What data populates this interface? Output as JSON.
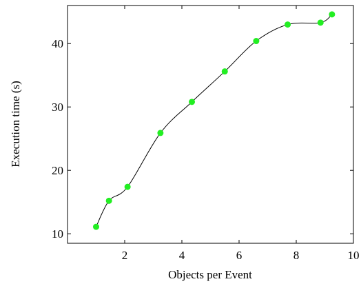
{
  "chart_data": {
    "type": "line",
    "title": "",
    "xlabel": "Objects per Event",
    "ylabel": "Execution time (s)",
    "xlim": [
      0.0,
      10.0
    ],
    "ylim": [
      8.5,
      46.0
    ],
    "xticks": [
      2,
      4,
      6,
      8,
      10
    ],
    "yticks": [
      10,
      20,
      30,
      40
    ],
    "xtick_labels": [
      "2",
      "4",
      "6",
      "8",
      "10"
    ],
    "ytick_labels": [
      "10",
      "20",
      "30",
      "40"
    ],
    "grid": false,
    "legend": "none",
    "series": [
      {
        "color": "#22ee22",
        "line_color": "#000000",
        "smooth": true,
        "marker": "circle",
        "x": [
          1.0,
          1.45,
          2.1,
          3.25,
          4.35,
          5.5,
          6.6,
          7.7,
          8.85,
          9.25
        ],
        "y": [
          11.1,
          15.2,
          17.4,
          25.9,
          30.8,
          35.6,
          40.4,
          43.0,
          43.3,
          44.6
        ]
      }
    ]
  }
}
